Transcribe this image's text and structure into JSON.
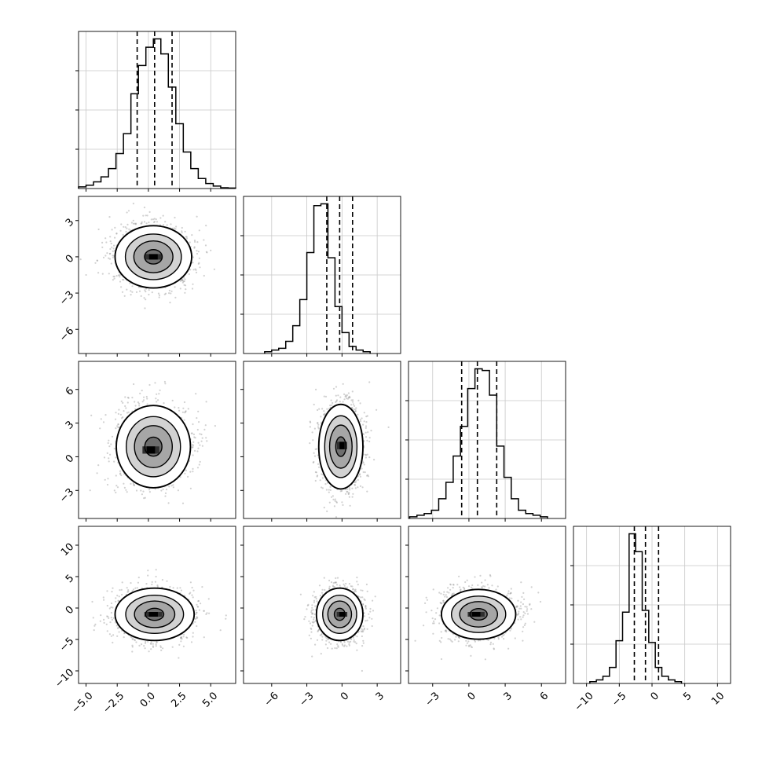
{
  "chart_data": {
    "type": "corner",
    "grid": true,
    "quantile_lines": "dashed",
    "parameters": [
      {
        "xlim": [
          -5.6,
          7.0
        ],
        "ticks": [
          -5.0,
          -2.5,
          0.0,
          2.5,
          5.0
        ],
        "tick_labels": [
          "−5.0",
          "−2.5",
          "0.0",
          "2.5",
          "5.0"
        ],
        "quantiles": [
          -0.9,
          0.5,
          1.9
        ],
        "hist": {
          "start": -5.6,
          "width": 0.6,
          "heights": [
            1,
            2,
            4,
            7,
            12,
            21,
            33,
            57,
            74,
            85,
            90,
            81,
            61,
            39,
            22,
            12,
            6,
            3,
            1.5,
            0.5,
            0.3
          ]
        }
      },
      {
        "xlim": [
          -8.4,
          5.0
        ],
        "ticks": [
          -6,
          -3,
          0,
          3
        ],
        "tick_labels": [
          "−6",
          "−3",
          "0",
          "3"
        ],
        "quantiles": [
          -1.3,
          -0.2,
          0.9
        ],
        "hist": {
          "start": -6.6,
          "width": 0.6,
          "heights": [
            1,
            2,
            3,
            7,
            16,
            31,
            58,
            85,
            86,
            55,
            27,
            12,
            4,
            2,
            1
          ]
        }
      },
      {
        "xlim": [
          -5.0,
          8.0
        ],
        "ticks": [
          -3,
          0,
          3,
          6
        ],
        "tick_labels": [
          "−3",
          "0",
          "3",
          "6"
        ],
        "quantiles": [
          -0.6,
          0.7,
          2.3
        ],
        "hist": {
          "start": -4.9,
          "width": 0.6,
          "heights": [
            1,
            2,
            3,
            5,
            12,
            22,
            38,
            56,
            79,
            91,
            90,
            75,
            44,
            25,
            12,
            5,
            3,
            2,
            1
          ]
        }
      },
      {
        "xlim": [
          -12.0,
          12.0
        ],
        "ticks": [
          -10,
          -5,
          0,
          5,
          10
        ],
        "tick_labels": [
          "−10",
          "−5",
          "0",
          "5",
          "10"
        ],
        "quantiles": [
          -2.7,
          -1.0,
          1.0
        ],
        "hist": {
          "start": -9.5,
          "width": 1.0,
          "heights": [
            1,
            2,
            4,
            9,
            24,
            40,
            84,
            74,
            41,
            23,
            9,
            4,
            2,
            1
          ]
        }
      }
    ],
    "y_ticks": [
      null,
      {
        "ticks": [
          3,
          0,
          -3,
          -6
        ],
        "tick_labels": [
          "3",
          "0",
          "−3",
          "−6"
        ],
        "ylim": [
          -8.0,
          5.0
        ]
      },
      {
        "ticks": [
          6,
          3,
          0,
          -3
        ],
        "tick_labels": [
          "6",
          "3",
          "0",
          "−3"
        ],
        "ylim": [
          -5.5,
          8.5
        ]
      },
      {
        "ticks": [
          10,
          5,
          0,
          -5,
          -10
        ],
        "tick_labels": [
          "10",
          "5",
          "0",
          "−5",
          "−10"
        ],
        "ylim": [
          -12.0,
          13.0
        ]
      }
    ],
    "joint": [
      {
        "row": 1,
        "col": 0,
        "center": [
          0.4,
          0.0
        ],
        "sx": 1.55,
        "sy": 1.3,
        "peak": [
          0.4,
          0.0
        ]
      },
      {
        "row": 2,
        "col": 0,
        "center": [
          0.4,
          0.9
        ],
        "sx": 1.5,
        "sy": 1.85,
        "peak": [
          0.2,
          0.6
        ]
      },
      {
        "row": 2,
        "col": 1,
        "center": [
          -0.1,
          0.9
        ],
        "sx": 0.95,
        "sy": 1.9,
        "peak": [
          0.0,
          1.0
        ]
      },
      {
        "row": 3,
        "col": 0,
        "center": [
          0.5,
          -1.0
        ],
        "sx": 1.6,
        "sy": 2.1,
        "peak": [
          0.4,
          -1.0
        ]
      },
      {
        "row": 3,
        "col": 1,
        "center": [
          -0.2,
          -1.0
        ],
        "sx": 1.0,
        "sy": 2.1,
        "peak": [
          0.0,
          -1.0
        ]
      },
      {
        "row": 3,
        "col": 2,
        "center": [
          0.8,
          -1.0
        ],
        "sx": 1.55,
        "sy": 2.0,
        "peak": [
          0.6,
          -1.0
        ]
      }
    ]
  }
}
